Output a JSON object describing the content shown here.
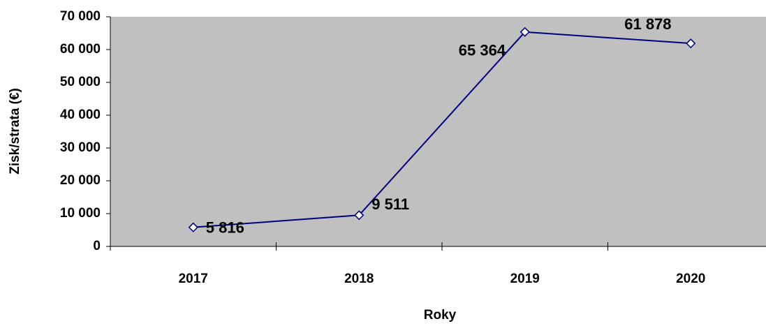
{
  "chart_data": {
    "type": "line",
    "x_label": "Roky",
    "y_label": "Zisk/strata (€)",
    "categories": [
      "2017",
      "2018",
      "2019",
      "2020"
    ],
    "series": [
      {
        "name": "Zisk/strata",
        "color": "#000080",
        "values": [
          5816,
          9511,
          65364,
          61878
        ],
        "value_labels": [
          "5 816",
          "9 511",
          "65 364",
          "61 878"
        ]
      }
    ],
    "ylim": [
      0,
      70000
    ],
    "yticks": [
      {
        "value": 0,
        "label": "0"
      },
      {
        "value": 10000,
        "label": "10 000"
      },
      {
        "value": 20000,
        "label": "20 000"
      },
      {
        "value": 30000,
        "label": "30 000"
      },
      {
        "value": 40000,
        "label": "40 000"
      },
      {
        "value": 50000,
        "label": "50 000"
      },
      {
        "value": 60000,
        "label": "60 000"
      },
      {
        "value": 70000,
        "label": "70 000"
      }
    ],
    "plot_background": "#c0c0c0",
    "grid": false
  }
}
